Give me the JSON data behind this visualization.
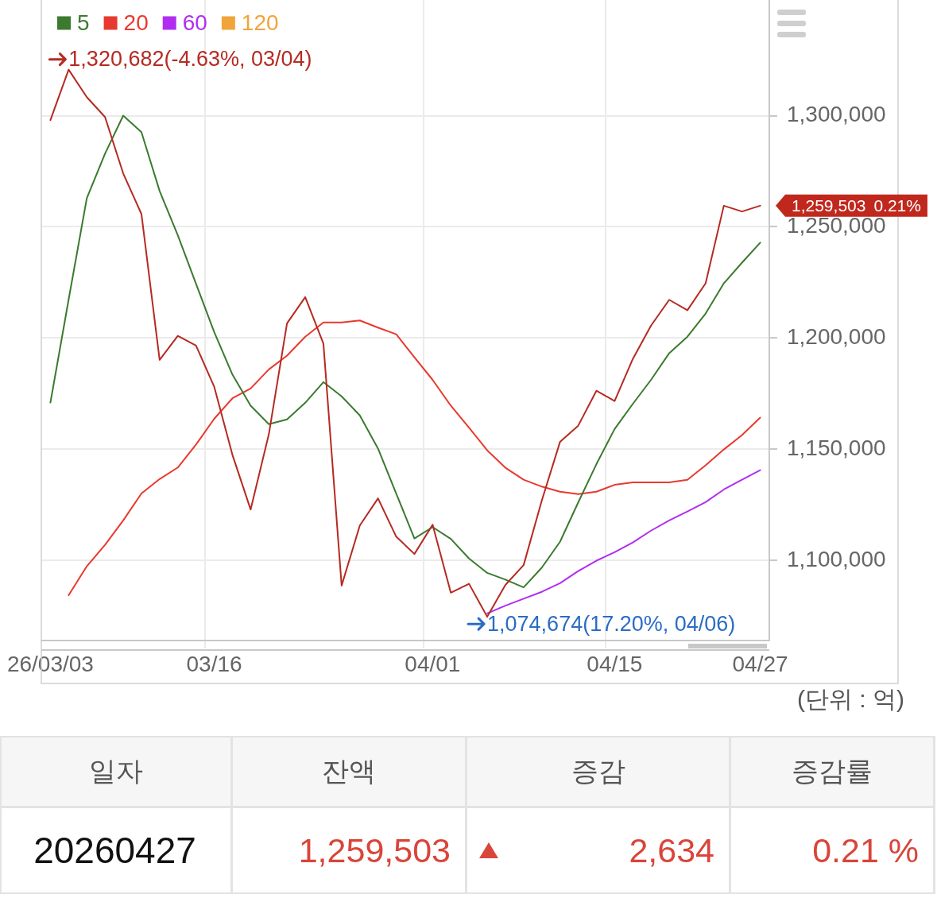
{
  "chart_data": [
    {
      "type": "line",
      "categories": [
        "26/03/03",
        null,
        null,
        null,
        null,
        null,
        null,
        null,
        null,
        "03/16",
        null,
        null,
        null,
        null,
        null,
        null,
        null,
        null,
        null,
        null,
        null,
        "04/01",
        null,
        null,
        null,
        null,
        null,
        null,
        null,
        null,
        null,
        "04/15",
        null,
        null,
        null,
        null,
        null,
        null,
        null,
        "04/27"
      ],
      "series": [
        {
          "color": "#b52a22",
          "values": [
            1298000,
            1320682,
            1308300,
            1299400,
            1274000,
            1255800,
            1190200,
            1201000,
            1196600,
            1178100,
            1147500,
            1122900,
            1156700,
            1206600,
            1218400,
            1197500,
            1088700,
            1115700,
            1127900,
            1110700,
            1102900,
            1116100,
            1085500,
            1089500,
            1074674,
            1089000,
            1097900,
            1127000,
            1153300,
            1160600,
            1176300,
            1171700,
            1190600,
            1205600,
            1217200,
            1212500,
            1224600,
            1259500,
            1256900,
            1259503
          ]
        },
        {
          "name": "5",
          "color": "#3b7a2f",
          "values": [
            1171000,
            1217300,
            1262900,
            1282900,
            1300000,
            1292600,
            1266100,
            1246200,
            1224400,
            1202700,
            1183600,
            1169600,
            1161300,
            1163400,
            1170900,
            1180200,
            1173800,
            1165200,
            1150300,
            1130100,
            1109900,
            1115000,
            1109700,
            1100900,
            1094400,
            1091400,
            1087900,
            1096800,
            1108400,
            1126100,
            1143300,
            1159100,
            1170400,
            1181200,
            1193200,
            1200600,
            1211000,
            1224600,
            1233900,
            1242900
          ]
        },
        {
          "name": "20",
          "color": "#e8392e",
          "values": [
            null,
            1084400,
            1097400,
            1107000,
            1118000,
            1130100,
            1136600,
            1141800,
            1152100,
            1163700,
            1172900,
            1177300,
            1185900,
            1192100,
            1200600,
            1207000,
            1207000,
            1207900,
            1204700,
            1201700,
            1191300,
            1181200,
            1169600,
            1159700,
            1149500,
            1141700,
            1136300,
            1133200,
            1130900,
            1129800,
            1130900,
            1134000,
            1135100,
            1135100,
            1135100,
            1136300,
            1142800,
            1149900,
            1156400,
            1164200
          ]
        },
        {
          "name": "60",
          "color": "#b02ef0",
          "values": [
            null,
            null,
            null,
            null,
            null,
            null,
            null,
            null,
            null,
            null,
            null,
            null,
            null,
            null,
            null,
            null,
            null,
            null,
            null,
            null,
            null,
            null,
            null,
            null,
            1076200,
            1079700,
            1082800,
            1085900,
            1089800,
            1095200,
            1099900,
            1103700,
            1108100,
            1113400,
            1118000,
            1122000,
            1126200,
            1131900,
            1136300,
            1140600
          ]
        },
        {
          "name": "120",
          "color": "#f0a43a",
          "values": [
            null,
            null,
            null,
            null,
            null,
            null,
            null,
            null,
            null,
            null,
            null,
            null,
            null,
            null,
            null,
            null,
            null,
            null,
            null,
            null,
            null,
            null,
            null,
            null,
            null,
            null,
            null,
            null,
            null,
            null,
            null,
            null,
            null,
            null,
            null,
            null,
            null,
            null,
            null,
            null
          ]
        }
      ],
      "ylim": [
        1064000,
        1352000
      ],
      "yticks": [
        {
          "value": 1100000,
          "label": "1,100,000"
        },
        {
          "value": 1150000,
          "label": "1,150,000"
        },
        {
          "value": 1200000,
          "label": "1,200,000"
        },
        {
          "value": 1250000,
          "label": "1,250,000"
        },
        {
          "value": 1300000,
          "label": "1,300,000"
        }
      ],
      "grid": true,
      "legend": "top left",
      "annotations": [
        "1,320,682(-4.63%, 03/04)",
        "1,074,674(17.20%, 04/06)",
        "1,259,503",
        "0.21%",
        "(단위 : 억)"
      ]
    },
    {
      "type": "other",
      "categories": [
        "일자",
        "잔액",
        "증감",
        "증감률"
      ],
      "annotations": [
        "20260427",
        "1,259,503",
        "2,634",
        "0.21 %"
      ]
    }
  ]
}
